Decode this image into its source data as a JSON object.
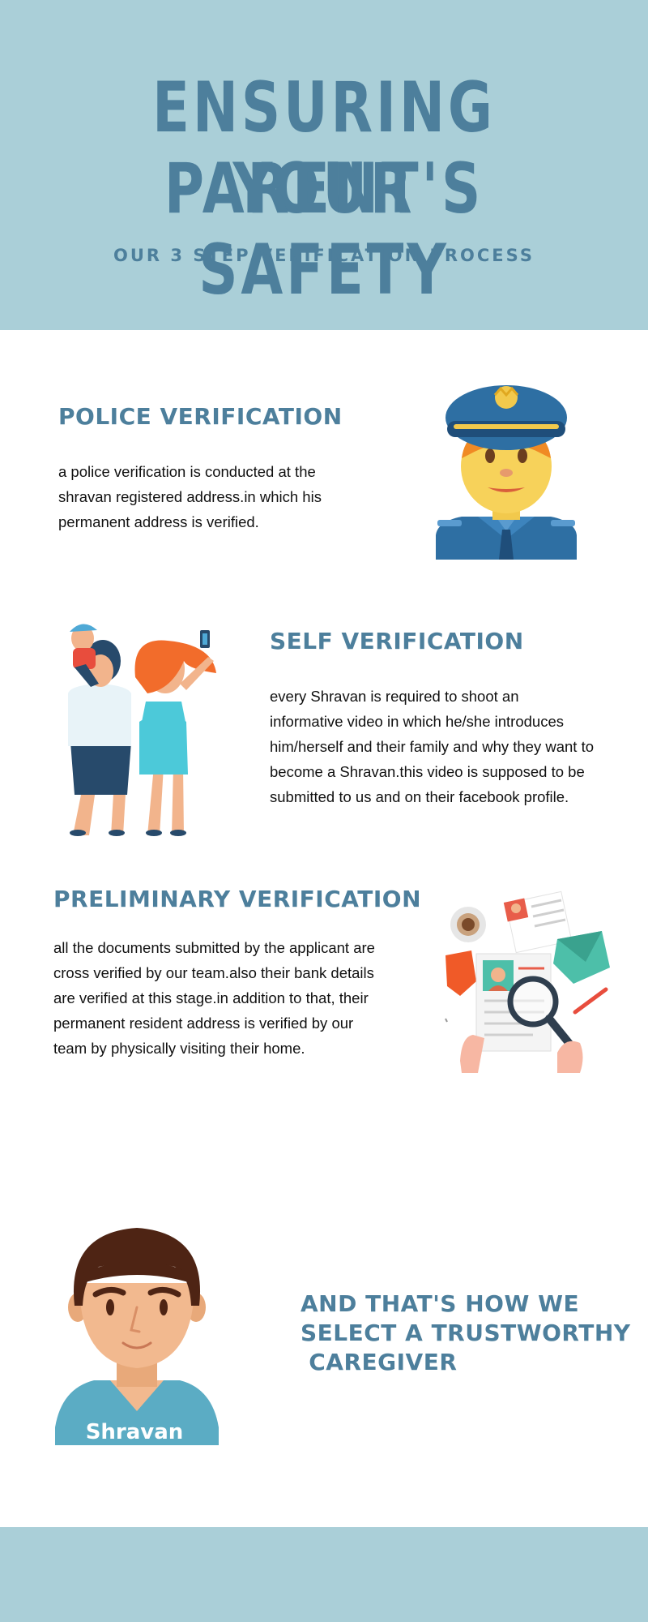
{
  "header": {
    "title_line1": "ENSURING YOUR",
    "title_line2": "PARENT'S SAFETY",
    "subtitle": "OUR 3 STEP VERIFICATION PROCESS"
  },
  "steps": [
    {
      "heading": "POLICE VERIFICATION",
      "text": "a police verification is conducted at the shravan registered address.in which his permanent address is verified.",
      "icon": "police-officer-icon"
    },
    {
      "heading": "SELF VERIFICATION",
      "text": "every Shravan is required to shoot an informative video in which he/she introduces him/herself and their family and why they want to become a Shravan.this video is supposed to be submitted to us and on their facebook profile.",
      "icon": "family-selfie-icon"
    },
    {
      "heading": "PRELIMINARY VERIFICATION",
      "text": "all the documents submitted by the applicant are cross verified by our team.also their bank details are verified at this stage.in addition to that, their permanent resident address is verified by our team by physically visiting their home.",
      "icon": "document-search-icon"
    }
  ],
  "closing": {
    "avatar_label": "Shravan",
    "text": "AND THAT'S HOW WE\nSELECT A TRUSTWORTHY\n CAREGIVER",
    "icon": "caregiver-avatar-icon"
  },
  "colors": {
    "banner": "#aacfd8",
    "heading": "#4d7f9c",
    "body_text": "#111111"
  }
}
